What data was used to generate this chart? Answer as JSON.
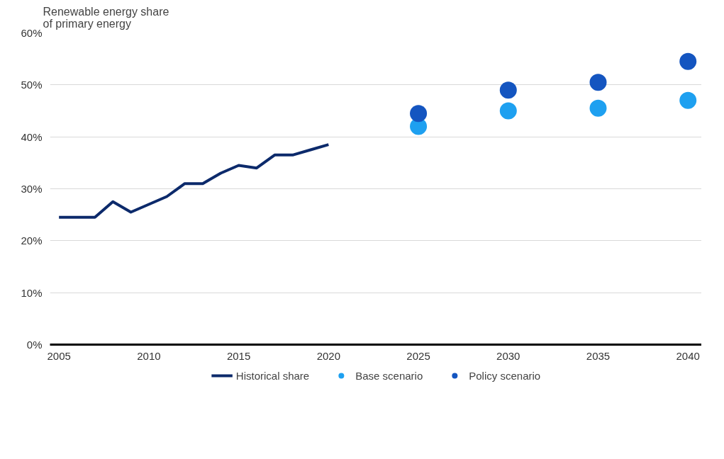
{
  "chart_data": {
    "type": "line",
    "ylabel": "Renewable energy share of primary energy",
    "xlim": [
      2004.5,
      2040.8
    ],
    "xticks": [
      2005,
      2010,
      2015,
      2020,
      2025,
      2030,
      2035,
      2040
    ],
    "ylim": [
      0,
      60
    ],
    "yticks": [
      {
        "value": 0,
        "label": "0%"
      },
      {
        "value": 10,
        "label": "10%"
      },
      {
        "value": 20,
        "label": "20%"
      },
      {
        "value": 30,
        "label": "30%"
      },
      {
        "value": 40,
        "label": "40%"
      },
      {
        "value": 50,
        "label": "50%"
      },
      {
        "value": 60,
        "label": "60%"
      }
    ],
    "grid": "y",
    "legend": "bottom",
    "series": [
      {
        "name": "Historical share",
        "color": "#0c2a6b",
        "marker": "none",
        "line_style": "solid",
        "x": [
          2005,
          2006,
          2007,
          2008,
          2009,
          2010,
          2011,
          2012,
          2013,
          2014,
          2015,
          2016,
          2017,
          2018,
          2019,
          2020
        ],
        "values": [
          24.5,
          24.5,
          24.5,
          27.5,
          25.5,
          27,
          28.5,
          31,
          31,
          33,
          34.5,
          34,
          36.5,
          36.5,
          37.5,
          38.5
        ]
      },
      {
        "name": "Base scenario",
        "type": "scatter",
        "color": "#1ea0f0",
        "marker": "circle",
        "x": [
          2025,
          2030,
          2035,
          2040
        ],
        "values": [
          42,
          45,
          45.5,
          47
        ]
      },
      {
        "name": "Policy scenario",
        "type": "scatter",
        "color": "#1455c0",
        "marker": "circle",
        "x": [
          2025,
          2030,
          2035,
          2040
        ],
        "values": [
          44.5,
          49,
          50.5,
          54.5
        ]
      }
    ]
  }
}
